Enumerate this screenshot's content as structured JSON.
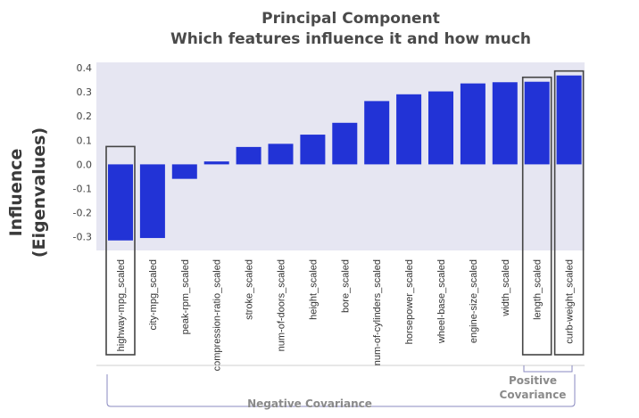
{
  "title_line1": "Principal Component",
  "title_line2": "Which features influence it and how much",
  "ylabel_line1": "Influence",
  "ylabel_line2": "(Eigenvalues)",
  "positive_line1": "Positive",
  "positive_line2": "Covariance",
  "negative_label": "Negative Covariance",
  "colors": {
    "bar": "#2233d6",
    "plot_bg": "#e6e6f2",
    "highlight_box": "#444444",
    "bracket": "#8a8ac0"
  },
  "chart_data": {
    "type": "bar",
    "title": "Principal Component\nWhich features influence it and how much",
    "ylabel": "Influence (Eigenvalues)",
    "xlabel": "",
    "ylim": [
      -0.35,
      0.41
    ],
    "yticks": [
      "0.4",
      "0.3",
      "0.2",
      "0.1",
      "0.0",
      "-0.1",
      "-0.2",
      "-0.3"
    ],
    "categories": [
      "highway-mpg_scaled",
      "city-mpg_scaled",
      "peak-rpm_scaled",
      "compression-ratio_scaled",
      "stroke_scaled",
      "num-of-doors_scaled",
      "height_scaled",
      "bore_scaled",
      "num-of-cylinders_scaled",
      "horsepower_scaled",
      "wheel-base_scaled",
      "engine-size_scaled",
      "width_scaled",
      "length_scaled",
      "curb-weight_scaled"
    ],
    "values": [
      -0.315,
      -0.305,
      -0.06,
      0.012,
      0.072,
      0.085,
      0.123,
      0.172,
      0.262,
      0.29,
      0.302,
      0.335,
      0.34,
      0.342,
      0.368
    ],
    "highlighted": [
      "highway-mpg_scaled",
      "length_scaled",
      "curb-weight_scaled"
    ],
    "grid": false,
    "legend": "none"
  }
}
